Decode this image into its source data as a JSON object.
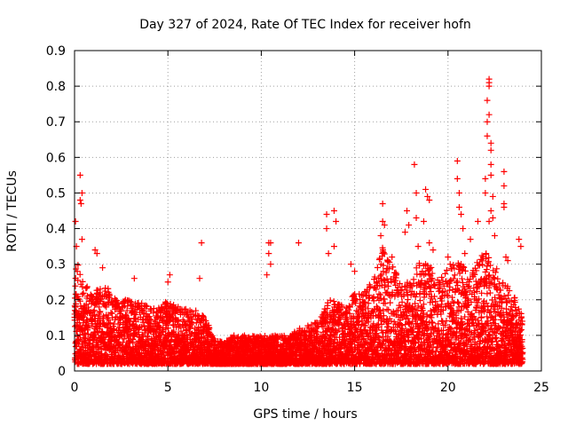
{
  "chart_data": {
    "type": "scatter",
    "title": "Day 327 of 2024, Rate Of TEC Index for receiver hofn",
    "xlabel": "GPS time / hours",
    "ylabel": "ROTI / TECUs",
    "xlim": [
      0,
      25
    ],
    "ylim": [
      0,
      0.9
    ],
    "xticks": [
      0,
      5,
      10,
      15,
      20,
      25
    ],
    "yticks": [
      0,
      0.1,
      0.2,
      0.3,
      0.4,
      0.5,
      0.6,
      0.7,
      0.8,
      0.9
    ],
    "grid": true,
    "marker": "+",
    "marker_color": "#ff0000",
    "envelope": {
      "x": [
        0.0,
        0.2,
        0.5,
        1.0,
        1.5,
        2.0,
        2.5,
        3.0,
        3.5,
        4.0,
        4.5,
        5.0,
        5.5,
        6.0,
        6.5,
        7.0,
        7.5,
        8.0,
        8.5,
        9.0,
        9.5,
        10.0,
        10.5,
        11.0,
        11.5,
        12.0,
        12.5,
        13.0,
        13.5,
        14.0,
        14.5,
        15.0,
        15.5,
        16.0,
        16.5,
        17.0,
        17.5,
        18.0,
        18.5,
        19.0,
        19.5,
        20.0,
        20.5,
        21.0,
        21.5,
        22.0,
        22.5,
        23.0,
        23.5,
        24.0
      ],
      "low": [
        0.02,
        0.02,
        0.02,
        0.02,
        0.02,
        0.02,
        0.02,
        0.02,
        0.02,
        0.02,
        0.02,
        0.02,
        0.02,
        0.02,
        0.02,
        0.02,
        0.02,
        0.02,
        0.02,
        0.02,
        0.02,
        0.02,
        0.02,
        0.02,
        0.02,
        0.02,
        0.02,
        0.02,
        0.02,
        0.02,
        0.02,
        0.02,
        0.02,
        0.02,
        0.02,
        0.02,
        0.02,
        0.02,
        0.02,
        0.02,
        0.02,
        0.02,
        0.02,
        0.02,
        0.02,
        0.02,
        0.02,
        0.02,
        0.02,
        0.02
      ],
      "high": [
        0.3,
        0.3,
        0.25,
        0.22,
        0.25,
        0.22,
        0.2,
        0.2,
        0.2,
        0.18,
        0.18,
        0.2,
        0.18,
        0.18,
        0.17,
        0.15,
        0.09,
        0.08,
        0.1,
        0.1,
        0.1,
        0.1,
        0.1,
        0.1,
        0.1,
        0.12,
        0.13,
        0.14,
        0.2,
        0.2,
        0.18,
        0.22,
        0.22,
        0.26,
        0.35,
        0.3,
        0.25,
        0.25,
        0.32,
        0.3,
        0.25,
        0.3,
        0.32,
        0.28,
        0.3,
        0.35,
        0.3,
        0.25,
        0.22,
        0.15
      ]
    },
    "outliers": [
      [
        0.05,
        0.42
      ],
      [
        0.1,
        0.35
      ],
      [
        0.15,
        0.28
      ],
      [
        0.3,
        0.55
      ],
      [
        0.3,
        0.48
      ],
      [
        0.35,
        0.47
      ],
      [
        0.4,
        0.5
      ],
      [
        0.4,
        0.37
      ],
      [
        1.1,
        0.34
      ],
      [
        1.2,
        0.33
      ],
      [
        1.5,
        0.29
      ],
      [
        3.2,
        0.26
      ],
      [
        5.1,
        0.27
      ],
      [
        5.0,
        0.25
      ],
      [
        6.8,
        0.36
      ],
      [
        6.7,
        0.26
      ],
      [
        10.3,
        0.27
      ],
      [
        10.4,
        0.36
      ],
      [
        10.4,
        0.33
      ],
      [
        10.5,
        0.3
      ],
      [
        10.5,
        0.36
      ],
      [
        12.0,
        0.36
      ],
      [
        13.5,
        0.44
      ],
      [
        13.5,
        0.4
      ],
      [
        13.6,
        0.33
      ],
      [
        13.9,
        0.45
      ],
      [
        13.9,
        0.35
      ],
      [
        14.0,
        0.42
      ],
      [
        14.8,
        0.3
      ],
      [
        15.0,
        0.28
      ],
      [
        16.5,
        0.47
      ],
      [
        16.5,
        0.42
      ],
      [
        16.6,
        0.41
      ],
      [
        16.4,
        0.38
      ],
      [
        17.0,
        0.32
      ],
      [
        17.8,
        0.45
      ],
      [
        17.7,
        0.39
      ],
      [
        17.9,
        0.41
      ],
      [
        18.2,
        0.58
      ],
      [
        18.3,
        0.5
      ],
      [
        18.3,
        0.43
      ],
      [
        18.4,
        0.35
      ],
      [
        18.7,
        0.42
      ],
      [
        18.8,
        0.51
      ],
      [
        18.9,
        0.49
      ],
      [
        19.0,
        0.48
      ],
      [
        19.0,
        0.36
      ],
      [
        19.2,
        0.34
      ],
      [
        20.0,
        0.32
      ],
      [
        20.5,
        0.59
      ],
      [
        20.5,
        0.54
      ],
      [
        20.6,
        0.5
      ],
      [
        20.6,
        0.46
      ],
      [
        20.7,
        0.44
      ],
      [
        20.8,
        0.4
      ],
      [
        20.9,
        0.33
      ],
      [
        21.2,
        0.37
      ],
      [
        21.6,
        0.42
      ],
      [
        22.0,
        0.5
      ],
      [
        22.0,
        0.54
      ],
      [
        22.1,
        0.76
      ],
      [
        22.1,
        0.7
      ],
      [
        22.1,
        0.66
      ],
      [
        22.2,
        0.82
      ],
      [
        22.2,
        0.81
      ],
      [
        22.2,
        0.8
      ],
      [
        22.2,
        0.72
      ],
      [
        22.3,
        0.64
      ],
      [
        22.3,
        0.62
      ],
      [
        22.3,
        0.58
      ],
      [
        22.3,
        0.55
      ],
      [
        22.3,
        0.45
      ],
      [
        22.4,
        0.49
      ],
      [
        22.4,
        0.43
      ],
      [
        22.5,
        0.38
      ],
      [
        22.2,
        0.42
      ],
      [
        23.0,
        0.56
      ],
      [
        23.0,
        0.52
      ],
      [
        23.0,
        0.47
      ],
      [
        23.0,
        0.46
      ],
      [
        23.1,
        0.32
      ],
      [
        23.2,
        0.31
      ],
      [
        23.8,
        0.37
      ],
      [
        23.9,
        0.35
      ]
    ]
  }
}
